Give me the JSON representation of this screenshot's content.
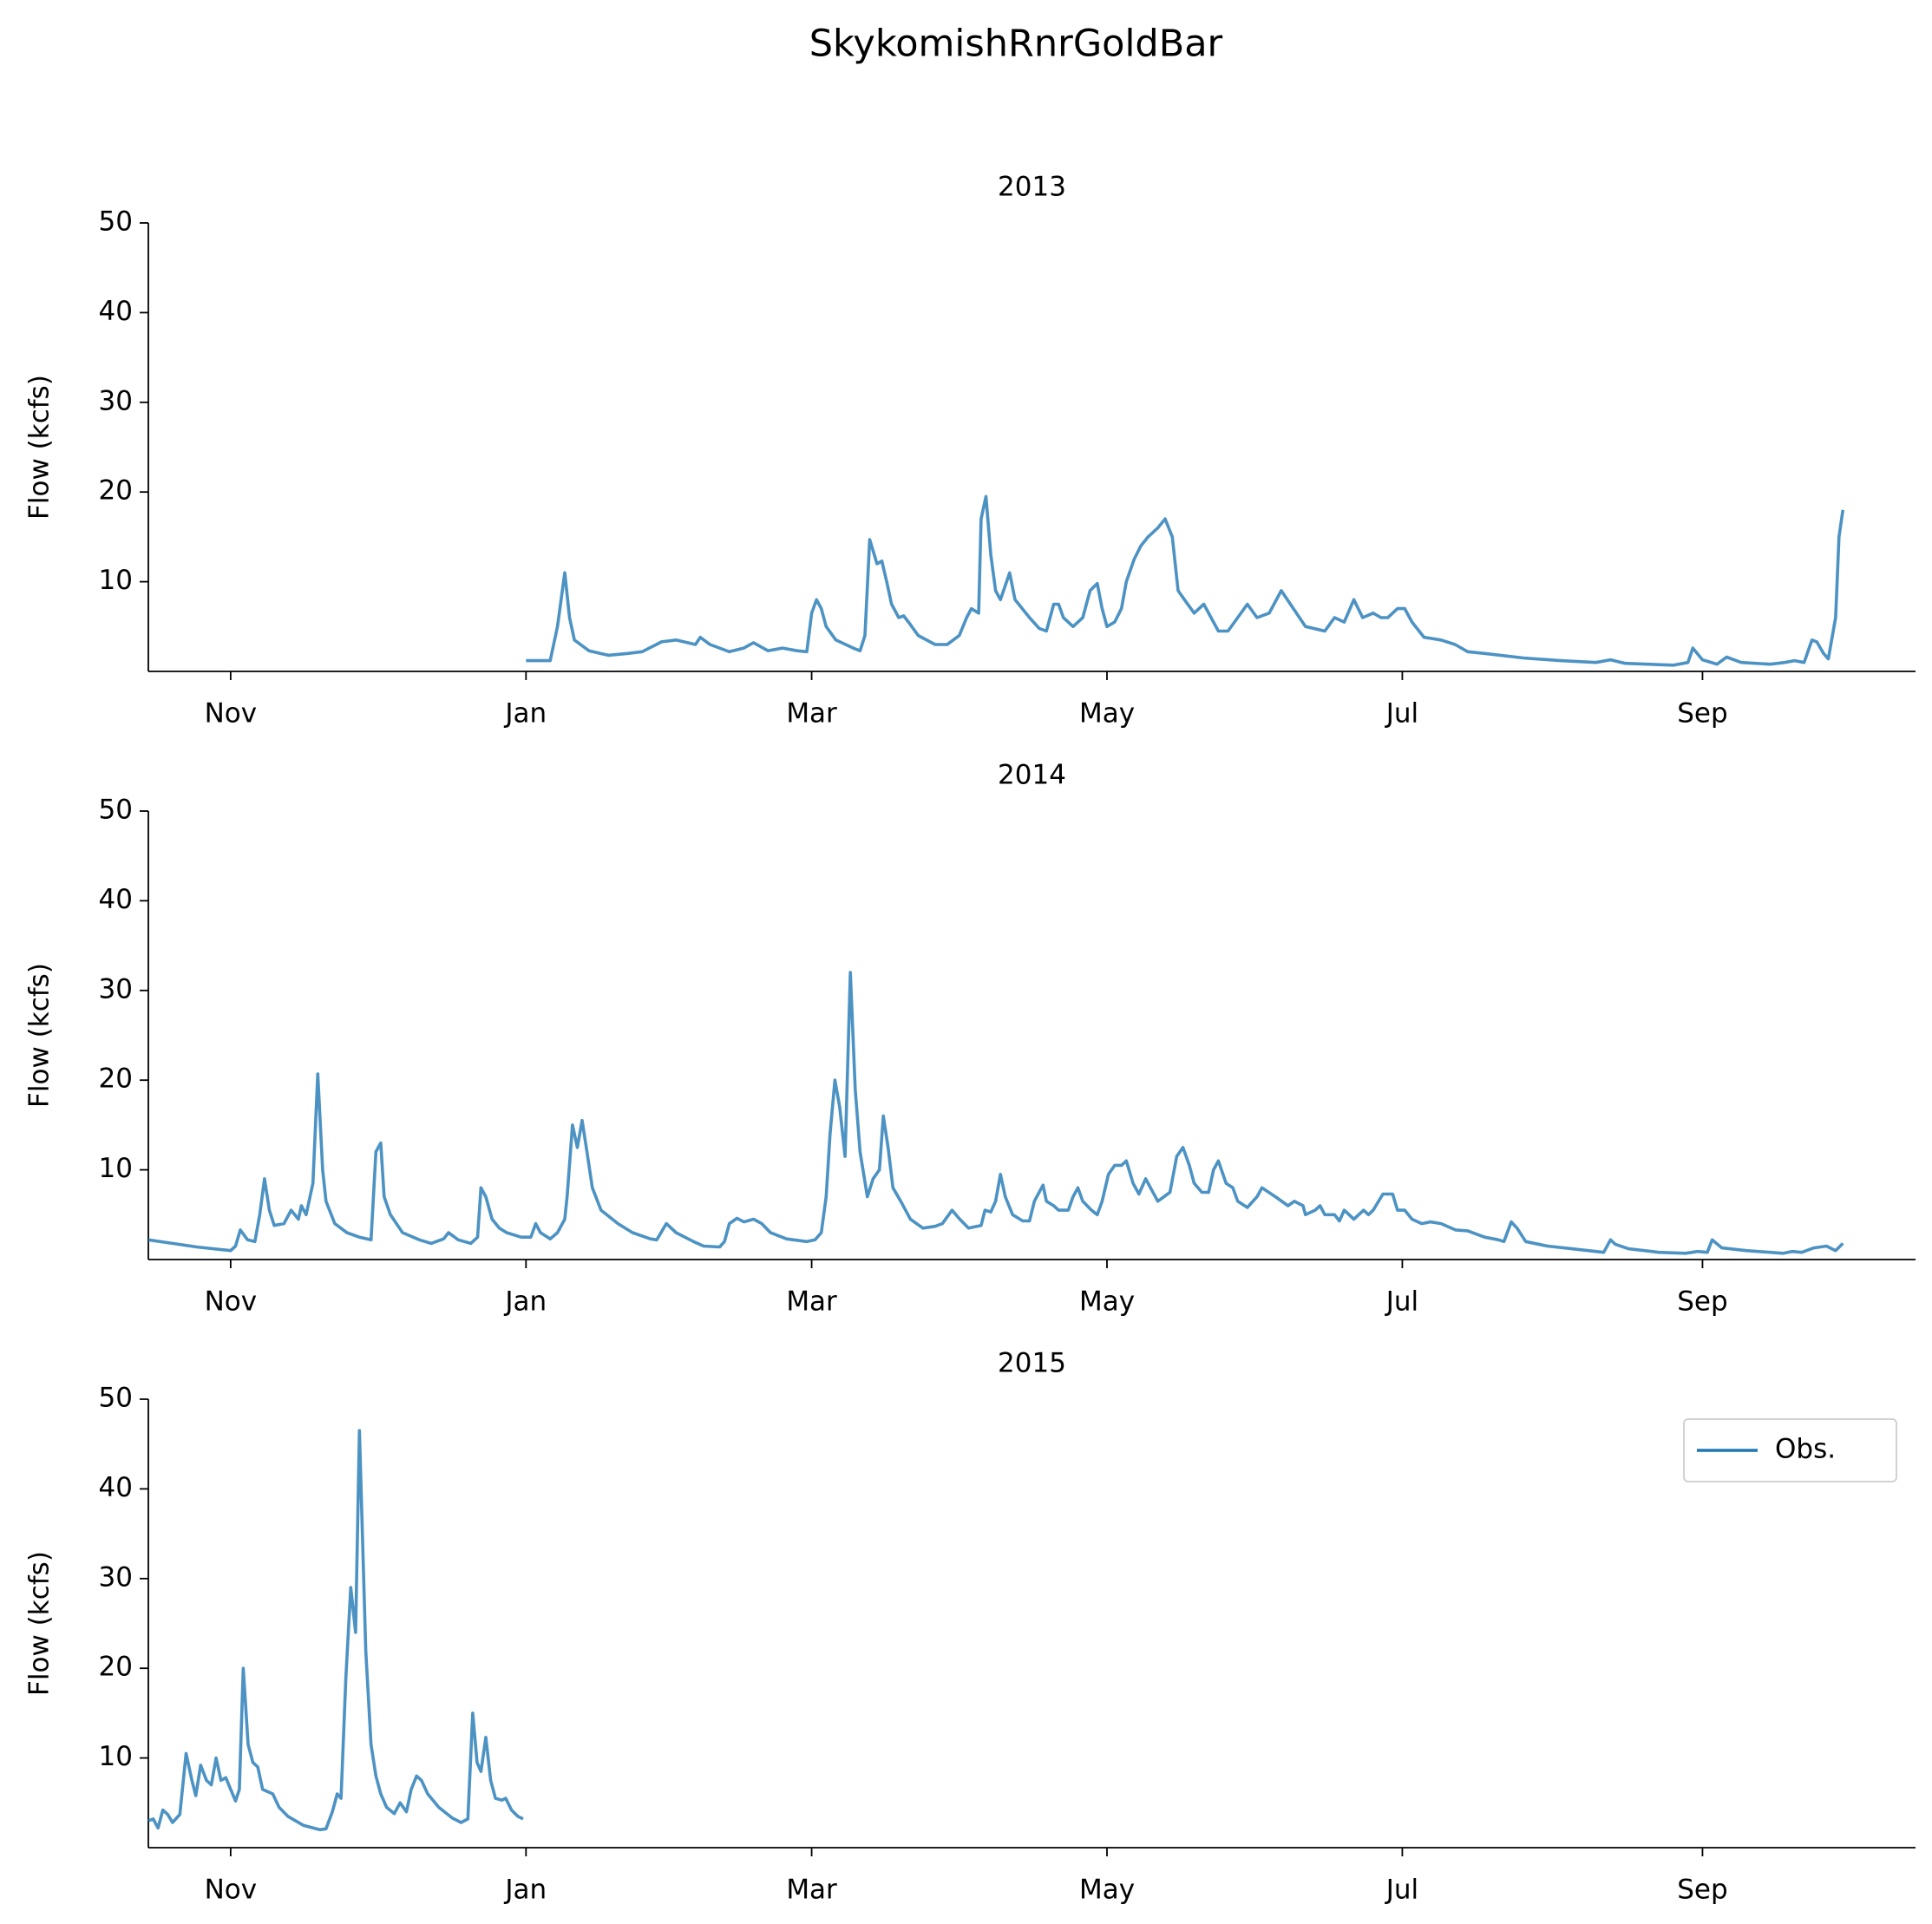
{
  "title": "SkykomishRnrGoldBar",
  "chart_data": [
    {
      "type": "line",
      "title": "2013",
      "ylabel": "Flow (kcfs)",
      "x": [
        92,
        97,
        98.5,
        100,
        101,
        102,
        105,
        109,
        113,
        116,
        120,
        123,
        127,
        128,
        130,
        134,
        137,
        139,
        142,
        145,
        148,
        150,
        151,
        152,
        153,
        154,
        156,
        160,
        161,
        162,
        163,
        164.5,
        165.5,
        166.5,
        167.5,
        169,
        170,
        171,
        173,
        176.5,
        179,
        181.5,
        183,
        184,
        185.5,
        186,
        187,
        188,
        189,
        190,
        191.9,
        193,
        196,
        198,
        199.5,
        201,
        202,
        203,
        205,
        207,
        208.5,
        210,
        211,
        212,
        213.6,
        215,
        216,
        217.6,
        219,
        220.5,
        222.5,
        224,
        225.5,
        226.7,
        228,
        230,
        232,
        233.5,
        235,
        237,
        239,
        241,
        243,
        245.5,
        248,
        250.5,
        253,
        257,
        259,
        261,
        263,
        264.8,
        267,
        268.6,
        270,
        272,
        273.5,
        275,
        277.5,
        281,
        283.9,
        286.5,
        290,
        298,
        305.7,
        313,
        316,
        319,
        329,
        332,
        333,
        335,
        338,
        340,
        343,
        349,
        352,
        354,
        356,
        357.6,
        358.6,
        360,
        361,
        362.5,
        363.2,
        364
      ],
      "series": [
        {
          "color": "#1f77b4",
          "values": [
            1.2,
            1.2,
            5,
            11,
            6,
            3.5,
            2.3,
            1.8,
            2.0,
            2.2,
            3.3,
            3.5,
            3.0,
            3.8,
            3.0,
            2.2,
            2.6,
            3.2,
            2.3,
            2.6,
            2.3,
            2.2,
            6.5,
            8,
            7,
            5,
            3.5,
            2.5,
            2.3,
            4,
            14.7,
            12,
            12.3,
            10,
            7.5,
            6,
            6.2,
            5.5,
            4,
            3,
            3,
            4,
            6,
            7,
            6.5,
            17,
            19.5,
            13,
            9,
            8,
            11,
            8,
            6,
            4.8,
            4.5,
            7.5,
            7.5,
            6,
            5,
            6,
            9,
            9.8,
            7,
            5,
            5.5,
            7,
            10,
            12.5,
            14,
            15,
            16,
            17,
            15,
            9,
            8,
            6.5,
            7.5,
            6,
            4.5,
            4.5,
            6,
            7.5,
            6,
            6.5,
            9,
            7,
            5,
            4.5,
            6,
            5.5,
            8,
            6,
            6.5,
            6,
            6,
            7,
            7,
            5.5,
            3.8,
            3.5,
            3,
            2.2,
            2,
            1.5,
            1.2,
            1,
            1.3,
            0.9,
            0.7,
            1,
            2.6,
            1.3,
            0.8,
            1.6,
            1.0,
            0.8,
            1.0,
            1.2,
            1.0,
            3.5,
            3.3,
            2,
            1.4,
            6,
            15,
            18
          ]
        }
      ],
      "xlim": [
        14,
        379
      ],
      "ylim": [
        0,
        50
      ],
      "yticks": [
        10,
        20,
        30,
        40,
        50
      ],
      "xticks": [
        {
          "value": 31,
          "label": "Nov"
        },
        {
          "value": 92,
          "label": "Jan"
        },
        {
          "value": 151,
          "label": "Mar"
        },
        {
          "value": 212,
          "label": "May"
        },
        {
          "value": 273,
          "label": "Jul"
        },
        {
          "value": 335,
          "label": "Sep"
        }
      ]
    },
    {
      "type": "line",
      "title": "2014",
      "ylabel": "Flow (kcfs)",
      "x": [
        14,
        19,
        24,
        31,
        32,
        33,
        34.5,
        36,
        37,
        38,
        39,
        40,
        42,
        43.5,
        45,
        45.6,
        46.6,
        48,
        49,
        50,
        50.7,
        52.5,
        55,
        57.6,
        60,
        61,
        62,
        62.7,
        64,
        66.5,
        70,
        72.4,
        75,
        76,
        78,
        80.6,
        82,
        82.7,
        83.7,
        85,
        86.5,
        88,
        91,
        93,
        94,
        95,
        97,
        98.5,
        100,
        100.5,
        101.6,
        102.6,
        103.6,
        104.6,
        105.7,
        107.5,
        111,
        114,
        117.7,
        119,
        121,
        123,
        126.6,
        128.7,
        132,
        133,
        134,
        135.6,
        137,
        139,
        140.7,
        142.5,
        145.8,
        150,
        151.7,
        153,
        154,
        154.8,
        155.8,
        156.8,
        157.9,
        159,
        160,
        161,
        162.5,
        163.7,
        165,
        165.8,
        166.8,
        167.8,
        169.4,
        171.4,
        174,
        176.5,
        178,
        180,
        181.6,
        183.4,
        186,
        186.8,
        188,
        189,
        190,
        191,
        192.5,
        194.6,
        196,
        197,
        198.8,
        199.5,
        201,
        202,
        204,
        205,
        206,
        207,
        208.8,
        210,
        211,
        212.3,
        213.6,
        215,
        216,
        217.4,
        218.6,
        220,
        221,
        222.5,
        225,
        226.4,
        227.7,
        229,
        230,
        231.6,
        233,
        234,
        235,
        236.6,
        238,
        239,
        241,
        243,
        244,
        246.8,
        249.4,
        250.7,
        252.5,
        253,
        255,
        256,
        257,
        259,
        260,
        261,
        263,
        265,
        266,
        267,
        269,
        271,
        272,
        273.5,
        275,
        277,
        278.8,
        281,
        284,
        286.5,
        290,
        292.9,
        294,
        295.5,
        296.7,
        298.5,
        303,
        308,
        314.6,
        316,
        317,
        319.7,
        326,
        331.5,
        334,
        336,
        337,
        339,
        344,
        351.7,
        353.5,
        355.5,
        358,
        360.6,
        362.5,
        364
      ],
      "series": [
        {
          "color": "#1f77b4",
          "values": [
            2.2,
            1.8,
            1.4,
            1.0,
            1.5,
            3.3,
            2.2,
            2,
            5,
            9,
            5.5,
            3.8,
            4,
            5.5,
            4.5,
            6,
            5,
            8.5,
            20.7,
            10,
            6.5,
            4,
            3,
            2.5,
            2.2,
            12,
            13,
            7,
            5,
            3,
            2.2,
            1.8,
            2.3,
            3,
            2.2,
            1.8,
            2.5,
            8,
            7,
            4.5,
            3.5,
            3,
            2.5,
            2.5,
            4,
            3,
            2.3,
            3,
            4.5,
            7,
            15,
            12.5,
            15.5,
            12,
            8,
            5.5,
            4,
            3,
            2.3,
            2.2,
            4,
            3,
            2,
            1.5,
            1.4,
            2,
            4,
            4.6,
            4.2,
            4.5,
            4,
            3,
            2.3,
            2,
            2.2,
            3,
            7,
            14,
            20,
            17,
            11.5,
            32,
            19,
            12,
            7,
            9,
            10,
            16,
            12.5,
            8,
            6.5,
            4.5,
            3.5,
            3.7,
            4,
            5.5,
            4.5,
            3.5,
            3.8,
            5.5,
            5.3,
            6.5,
            9.5,
            7,
            5,
            4.3,
            4.3,
            6.5,
            8.3,
            6.5,
            6,
            5.5,
            5.5,
            7,
            8,
            6.5,
            5.5,
            5,
            6.5,
            9.5,
            10.5,
            10.5,
            11,
            8.5,
            7.3,
            9,
            8,
            6.5,
            7.5,
            11.5,
            12.5,
            10.5,
            8.5,
            7.5,
            7.5,
            10,
            11,
            8.5,
            8,
            6.5,
            5.8,
            7,
            8,
            7,
            6.0,
            6.5,
            6,
            5,
            5.5,
            6,
            5,
            5,
            4.3,
            5.5,
            4.5,
            5.5,
            5,
            5.5,
            7.3,
            7.3,
            5.5,
            5.5,
            4.5,
            4,
            4.2,
            4,
            3.3,
            3.2,
            2.5,
            2.2,
            2.0,
            4.2,
            3.5,
            2,
            1.5,
            1.2,
            0.8,
            2.2,
            1.7,
            1.2,
            0.8,
            0.7,
            0.9,
            0.8,
            2.2,
            1.3,
            1,
            0.7,
            0.9,
            0.8,
            1.3,
            1.5,
            1,
            1.8
          ]
        }
      ],
      "xlim": [
        14,
        379
      ],
      "ylim": [
        0,
        50
      ],
      "yticks": [
        10,
        20,
        30,
        40,
        50
      ],
      "xticks": [
        {
          "value": 31,
          "label": "Nov"
        },
        {
          "value": 92,
          "label": "Jan"
        },
        {
          "value": 151,
          "label": "Mar"
        },
        {
          "value": 212,
          "label": "May"
        },
        {
          "value": 273,
          "label": "Jul"
        },
        {
          "value": 335,
          "label": "Sep"
        }
      ]
    },
    {
      "type": "line",
      "title": "2015",
      "ylabel": "Flow (kcfs)",
      "x": [
        14,
        15,
        16,
        17,
        18,
        19,
        20.5,
        21.8,
        23,
        23.8,
        24.8,
        26,
        27,
        28,
        29,
        30,
        31,
        32,
        32.8,
        33.6,
        34.6,
        35.6,
        36.6,
        37.6,
        39.7,
        41,
        42.8,
        46,
        49.4,
        50.7,
        52,
        53,
        53.8,
        54.8,
        55.8,
        56.8,
        57.6,
        58.9,
        60,
        61,
        62,
        63.2,
        64.8,
        66,
        67.3,
        68.3,
        69.4,
        70.4,
        71.7,
        74,
        76.8,
        78.6,
        80,
        81,
        81.9,
        82.7,
        83.7,
        84.7,
        85.7,
        87,
        87.8,
        89,
        90.3,
        91.4
      ],
      "series": [
        {
          "name": "Obs.",
          "color": "#1f77b4",
          "values": [
            3,
            3.2,
            2.2,
            4.2,
            3.7,
            2.8,
            3.7,
            10.5,
            7.5,
            5.8,
            9.2,
            7.5,
            7,
            10,
            7.5,
            7.8,
            6.5,
            5.2,
            6.5,
            20,
            11.5,
            9.5,
            9,
            6.5,
            6,
            4.5,
            3.5,
            2.5,
            2,
            2.1,
            4,
            6,
            5.5,
            19,
            29,
            24,
            46.5,
            22,
            11.5,
            8,
            6,
            4.5,
            3.8,
            5,
            4,
            6.5,
            8,
            7.5,
            6,
            4.5,
            3.3,
            2.8,
            3.2,
            15,
            9.5,
            8.5,
            12.3,
            7.5,
            5.5,
            5.3,
            5.5,
            4.2,
            3.5,
            3.2
          ]
        }
      ],
      "xlim": [
        14,
        379
      ],
      "ylim": [
        0,
        50
      ],
      "yticks": [
        10,
        20,
        30,
        40,
        50
      ],
      "legend": "upper right",
      "xticks": [
        {
          "value": 31,
          "label": "Nov"
        },
        {
          "value": 92,
          "label": "Jan"
        },
        {
          "value": 151,
          "label": "Mar"
        },
        {
          "value": 212,
          "label": "May"
        },
        {
          "value": 273,
          "label": "Jul"
        },
        {
          "value": 335,
          "label": "Sep"
        }
      ]
    }
  ]
}
